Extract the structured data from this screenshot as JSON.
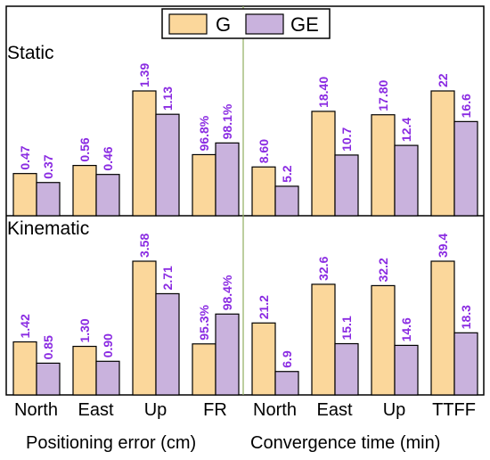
{
  "colors": {
    "G": "#fbd79b",
    "GE": "#c9b2dd",
    "label": "#8a2be2",
    "divider": "#8fae5f"
  },
  "chart_data": {
    "type": "bar",
    "legend": {
      "entries": [
        "G",
        "GE"
      ],
      "placement": "top-center"
    },
    "categories": [
      "North",
      "East",
      "Up",
      "FR",
      "North",
      "East",
      "Up",
      "TTFF"
    ],
    "group_labels": [
      "Positioning error (cm)",
      "Convergence time (min)"
    ],
    "panels": [
      {
        "title": "Static",
        "series": [
          {
            "name": "G",
            "values": [
              0.47,
              0.56,
              1.39,
              96.8,
              8.6,
              18.4,
              17.8,
              22
            ],
            "labels": [
              "0.47",
              "0.56",
              "1.39",
              "96.8%",
              "8.60",
              "18.40",
              "17.80",
              "22"
            ]
          },
          {
            "name": "GE",
            "values": [
              0.37,
              0.46,
              1.13,
              98.1,
              5.2,
              10.7,
              12.4,
              16.6
            ],
            "labels": [
              "0.37",
              "0.46",
              "1.13",
              "98.1%",
              "5.2",
              "10.7",
              "12.4",
              "16.6"
            ]
          }
        ]
      },
      {
        "title": "Kinematic",
        "series": [
          {
            "name": "G",
            "values": [
              1.42,
              1.3,
              3.58,
              95.3,
              21.2,
              32.6,
              32.2,
              39.4
            ],
            "labels": [
              "1.42",
              "1.30",
              "3.58",
              "95.3%",
              "21.2",
              "32.6",
              "32.2",
              "39.4"
            ]
          },
          {
            "name": "GE",
            "values": [
              0.85,
              0.9,
              2.71,
              98.4,
              6.9,
              15.1,
              14.6,
              18.3
            ],
            "labels": [
              "0.85",
              "0.90",
              "2.71",
              "98.4%",
              "6.9",
              "15.1",
              "14.6",
              "18.3"
            ]
          }
        ]
      }
    ]
  }
}
